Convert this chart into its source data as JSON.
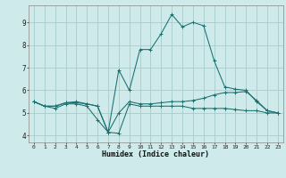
{
  "xlabel": "Humidex (Indice chaleur)",
  "background_color": "#ceeaea",
  "grid_color": "#a8cccc",
  "line_color": "#1a7070",
  "x_values": [
    0,
    1,
    2,
    3,
    4,
    5,
    6,
    7,
    8,
    9,
    10,
    11,
    12,
    13,
    14,
    15,
    16,
    17,
    18,
    19,
    20,
    21,
    22,
    23
  ],
  "series1": [
    5.5,
    5.3,
    5.2,
    5.4,
    5.4,
    5.3,
    4.7,
    4.15,
    4.1,
    5.4,
    5.3,
    5.3,
    5.3,
    5.3,
    5.3,
    5.2,
    5.2,
    5.2,
    5.2,
    5.15,
    5.1,
    5.1,
    5.0,
    5.0
  ],
  "series2": [
    5.5,
    5.3,
    5.3,
    5.45,
    5.45,
    5.4,
    5.3,
    4.15,
    5.0,
    5.5,
    5.4,
    5.4,
    5.45,
    5.5,
    5.5,
    5.55,
    5.65,
    5.8,
    5.9,
    5.9,
    5.95,
    5.55,
    5.1,
    5.0
  ],
  "series3": [
    5.5,
    5.3,
    5.3,
    5.45,
    5.5,
    5.4,
    5.3,
    4.15,
    6.9,
    6.0,
    7.8,
    7.8,
    8.5,
    9.35,
    8.8,
    9.0,
    8.85,
    7.3,
    6.15,
    6.05,
    6.0,
    5.5,
    5.1,
    5.0
  ],
  "ylim": [
    3.7,
    9.75
  ],
  "xlim": [
    -0.5,
    23.5
  ],
  "yticks": [
    4,
    5,
    6,
    7,
    8,
    9
  ],
  "xticks": [
    0,
    1,
    2,
    3,
    4,
    5,
    6,
    7,
    8,
    9,
    10,
    11,
    12,
    13,
    14,
    15,
    16,
    17,
    18,
    19,
    20,
    21,
    22,
    23
  ]
}
